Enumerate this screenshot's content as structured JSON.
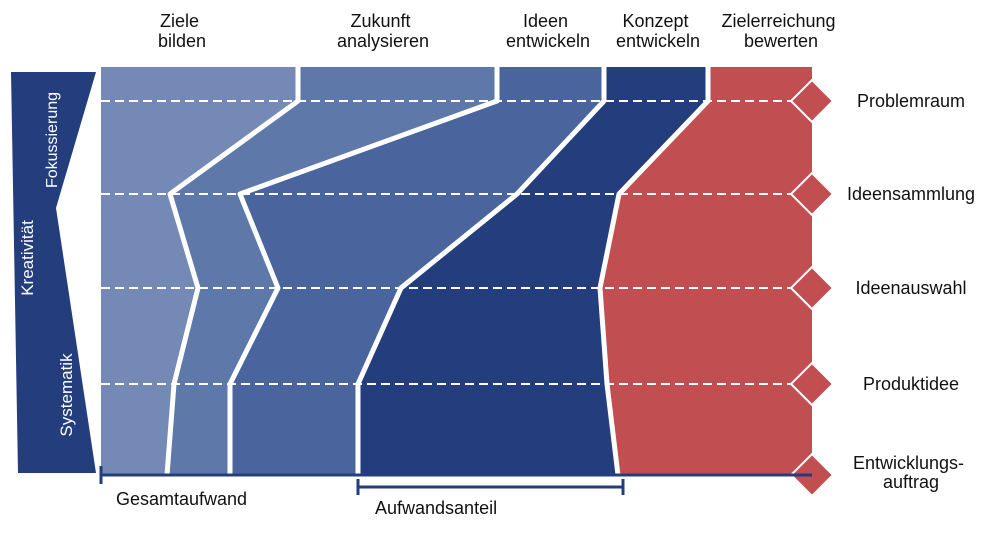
{
  "phases": [
    {
      "line1": "Ziele",
      "line2": "bilden",
      "color": "#7489b5"
    },
    {
      "line1": "Zukunft",
      "line2": "analysieren",
      "color": "#5e78aa"
    },
    {
      "line1": "Ideen",
      "line2": "entwickeln",
      "color": "#4a659d"
    },
    {
      "line1": "Konzept",
      "line2": "entwickeln",
      "color": "#233d7d"
    },
    {
      "line1": "Zielerreichung",
      "line2": "bewerten",
      "color": "#c14e50"
    }
  ],
  "milestones": [
    {
      "line1": "Problemraum",
      "line2": ""
    },
    {
      "line1": "Ideensammlung",
      "line2": ""
    },
    {
      "line1": "Ideenauswahl",
      "line2": ""
    },
    {
      "line1": "Produktidee",
      "line2": ""
    },
    {
      "line1": "Entwicklungs-",
      "line2": "auftrag"
    }
  ],
  "side_labels": {
    "creativity": "Kreativität",
    "focusing": "Fokussierung",
    "systematics": "Systematik"
  },
  "bottom_labels": {
    "total_effort": "Gesamtaufwand",
    "effort_share": "Aufwandsanteil"
  },
  "colors": {
    "navy": "#233d7d",
    "milestone": "#c14e50",
    "background": "#ffffff"
  }
}
